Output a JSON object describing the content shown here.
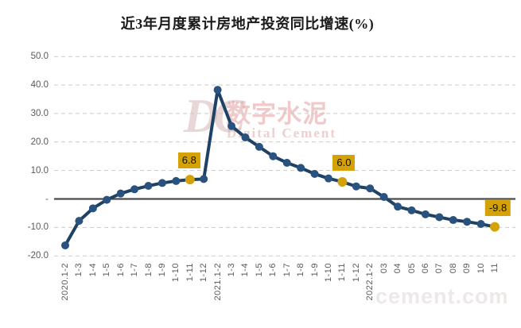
{
  "title": "近3年月度累计房地产投资同比增速(%)",
  "watermark": {
    "monogram": "DC",
    "name_cn": "数字水泥",
    "name_en": "Digital Cement",
    "site": "cement.com"
  },
  "colors": {
    "background": "#FFFFFF",
    "line": "#1E4265",
    "marker": "#2A527E",
    "highlight": "#D4A106",
    "grid": "#C9C9C9",
    "zero_line": "#4A4A4A",
    "axis_text": "#595959",
    "annotation_text": "#101000"
  },
  "y_axis": {
    "ticks": [
      {
        "value": 50,
        "label": "50.0"
      },
      {
        "value": 40,
        "label": "40.0"
      },
      {
        "value": 30,
        "label": "30.0"
      },
      {
        "value": 20,
        "label": "20.0"
      },
      {
        "value": 10,
        "label": "10.0"
      },
      {
        "value": 0,
        "label": "-"
      },
      {
        "value": -10,
        "label": "-10.0"
      },
      {
        "value": -20,
        "label": "-20.0"
      }
    ]
  },
  "chart_data": {
    "type": "line",
    "title": "近3年月度累计房地产投资同比增速(%)",
    "xlabel": "",
    "ylabel": "",
    "ylim": [
      -20,
      50
    ],
    "grid": "horizontal-dashed",
    "legend": "none",
    "categories": [
      "2020.1-2",
      "1-3",
      "1-4",
      "1-5",
      "1-6",
      "1-7",
      "1-8",
      "1-9",
      "1-10",
      "1-11",
      "1-12",
      "2021.1-2",
      "1-3",
      "1-4",
      "1-5",
      "1-6",
      "1-7",
      "1-8",
      "1-9",
      "1-10",
      "1-11",
      "1-12",
      "2022.1-2",
      "03",
      "04",
      "05",
      "06",
      "07",
      "08",
      "09",
      "10",
      "11"
    ],
    "values": [
      -16.3,
      -7.7,
      -3.3,
      -0.3,
      1.9,
      3.4,
      4.6,
      5.6,
      6.3,
      6.8,
      7.0,
      38.3,
      25.6,
      21.6,
      18.3,
      15.0,
      12.7,
      10.9,
      8.8,
      7.2,
      6.0,
      4.4,
      3.7,
      0.7,
      -2.7,
      -4.0,
      -5.4,
      -6.4,
      -7.4,
      -8.0,
      -8.8,
      -9.8
    ],
    "annotations": [
      {
        "index": 9,
        "label": "6.8",
        "dx": -1
      },
      {
        "index": 20,
        "label": "6.0",
        "dx": 2
      },
      {
        "index": 31,
        "label": "-9.8",
        "dx": 4
      }
    ]
  }
}
